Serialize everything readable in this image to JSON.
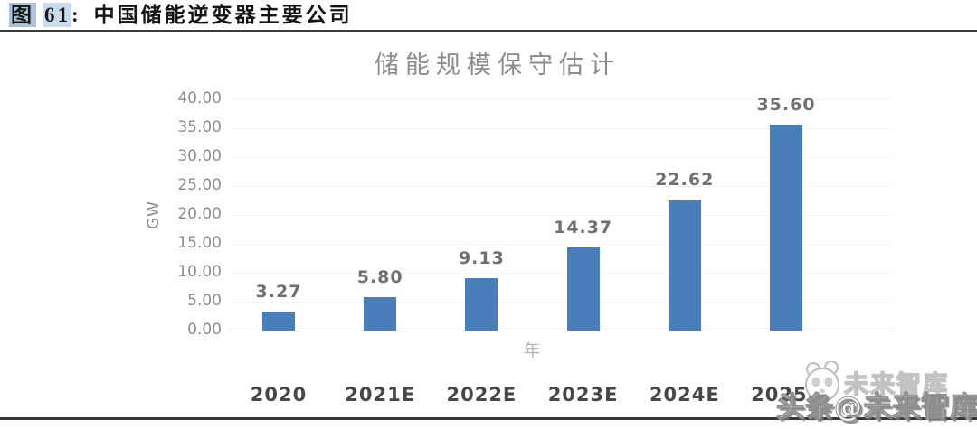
{
  "header": {
    "fig_label": "图",
    "fig_number": "61",
    "colon": ":",
    "title": "中国储能逆变器主要公司"
  },
  "chart_data": {
    "type": "bar",
    "title": "储能规模保守估计",
    "xlabel": "年",
    "ylabel": "GW",
    "categories": [
      "2020",
      "2021E",
      "2022E",
      "2023E",
      "2024E",
      "2025E"
    ],
    "values": [
      3.27,
      5.8,
      9.13,
      14.37,
      22.62,
      35.6
    ],
    "value_labels": [
      "3.27",
      "5.80",
      "9.13",
      "14.37",
      "22.62",
      "35.60"
    ],
    "ylim": [
      0,
      40
    ],
    "ytick_step": 5,
    "ytick_labels": [
      "0.00",
      "5.00",
      "10.00",
      "15.00",
      "20.00",
      "25.00",
      "30.00",
      "35.00",
      "40.00"
    ],
    "grid": true,
    "legend_position": "none",
    "bar_color": "#4a7eba"
  },
  "watermark": {
    "main": "头条@未来智库",
    "ghost": "未来智库"
  },
  "colors": {
    "caption_highlight_strong": "#a9c3dc",
    "caption_highlight_light": "#c9dcee",
    "bar": "#4a7eba",
    "rule": "#3c3c3c"
  }
}
